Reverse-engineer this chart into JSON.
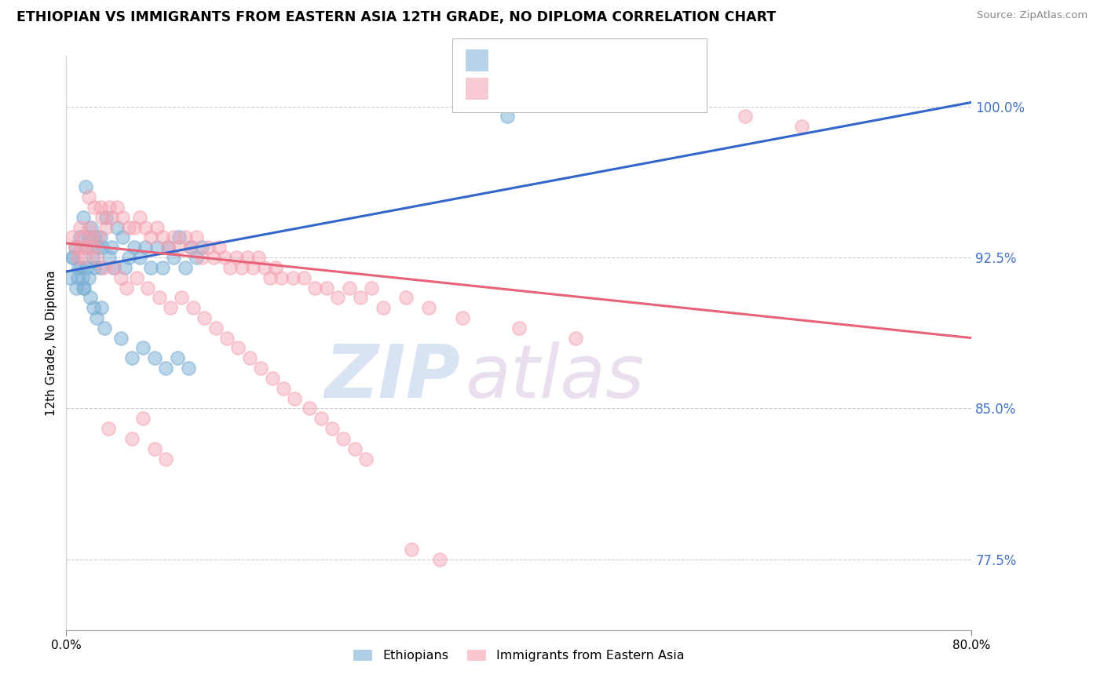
{
  "title": "ETHIOPIAN VS IMMIGRANTS FROM EASTERN ASIA 12TH GRADE, NO DIPLOMA CORRELATION CHART",
  "source": "Source: ZipAtlas.com",
  "ylabel": "12th Grade, No Diploma",
  "y_ticks": [
    77.5,
    85.0,
    92.5,
    100.0
  ],
  "y_tick_labels": [
    "77.5%",
    "85.0%",
    "92.5%",
    "100.0%"
  ],
  "xlim": [
    0.0,
    80.0
  ],
  "ylim": [
    74.0,
    102.5
  ],
  "legend_label_blue": "Ethiopians",
  "legend_label_pink": "Immigrants from Eastern Asia",
  "blue_color": "#7BAFD4",
  "pink_color": "#F4A0B0",
  "blue_line_color": "#3366CC",
  "pink_line_color": "#E8637A",
  "tick_color": "#4472C4",
  "watermark_zip": "ZIP",
  "watermark_atlas": "atlas",
  "blue_line_x0": 0.0,
  "blue_line_y0": 91.8,
  "blue_line_x1": 80.0,
  "blue_line_y1": 100.2,
  "pink_line_x0": 0.0,
  "pink_line_y0": 93.2,
  "pink_line_x1": 80.0,
  "pink_line_y1": 88.5,
  "blue_scatter_x": [
    0.5,
    0.8,
    1.0,
    1.2,
    1.3,
    1.5,
    1.5,
    1.8,
    1.8,
    2.0,
    2.0,
    2.2,
    2.3,
    2.5,
    2.5,
    2.8,
    3.0,
    3.0,
    3.2,
    3.5,
    3.8,
    4.0,
    4.2,
    4.5,
    5.0,
    5.2,
    5.5,
    6.0,
    6.5,
    7.0,
    7.5,
    8.0,
    8.5,
    9.0,
    9.5,
    10.0,
    10.5,
    11.0,
    11.5,
    12.0,
    0.3,
    0.6,
    0.9,
    1.1,
    1.4,
    1.6,
    2.1,
    2.4,
    2.7,
    3.1,
    3.4,
    4.8,
    5.8,
    6.8,
    7.8,
    8.8,
    9.8,
    10.8,
    39.0,
    1.7
  ],
  "blue_scatter_y": [
    92.5,
    93.0,
    91.5,
    93.5,
    92.0,
    94.5,
    91.0,
    93.0,
    92.0,
    93.5,
    91.5,
    94.0,
    92.5,
    93.5,
    92.0,
    93.0,
    93.5,
    92.0,
    93.0,
    94.5,
    92.5,
    93.0,
    92.0,
    94.0,
    93.5,
    92.0,
    92.5,
    93.0,
    92.5,
    93.0,
    92.0,
    93.0,
    92.0,
    93.0,
    92.5,
    93.5,
    92.0,
    93.0,
    92.5,
    93.0,
    91.5,
    92.5,
    91.0,
    92.0,
    91.5,
    91.0,
    90.5,
    90.0,
    89.5,
    90.0,
    89.0,
    88.5,
    87.5,
    88.0,
    87.5,
    87.0,
    87.5,
    87.0,
    99.5,
    96.0
  ],
  "pink_scatter_x": [
    0.5,
    0.8,
    1.0,
    1.2,
    1.5,
    1.8,
    2.0,
    2.0,
    2.2,
    2.5,
    2.8,
    3.0,
    3.2,
    3.5,
    3.8,
    4.0,
    4.5,
    5.0,
    5.5,
    6.0,
    6.5,
    7.0,
    7.5,
    8.0,
    8.5,
    9.0,
    9.5,
    10.0,
    10.5,
    11.0,
    11.5,
    12.0,
    12.5,
    13.0,
    13.5,
    14.0,
    14.5,
    15.0,
    15.5,
    16.0,
    16.5,
    17.0,
    17.5,
    18.0,
    18.5,
    19.0,
    20.0,
    21.0,
    22.0,
    23.0,
    24.0,
    25.0,
    26.0,
    27.0,
    28.0,
    30.0,
    32.0,
    35.0,
    40.0,
    45.0,
    1.3,
    1.6,
    2.3,
    2.7,
    3.3,
    4.2,
    4.8,
    5.3,
    6.2,
    7.2,
    8.2,
    9.2,
    10.2,
    11.2,
    12.2,
    13.2,
    14.2,
    15.2,
    16.2,
    17.2,
    18.2,
    19.2,
    20.2,
    21.5,
    22.5,
    23.5,
    24.5,
    25.5,
    26.5,
    3.7,
    5.8,
    6.8,
    7.8,
    8.8,
    30.5,
    33.0,
    60.0,
    65.0
  ],
  "pink_scatter_y": [
    93.5,
    93.0,
    92.5,
    94.0,
    93.5,
    93.0,
    95.5,
    94.0,
    93.5,
    95.0,
    93.5,
    95.0,
    94.5,
    94.0,
    95.0,
    94.5,
    95.0,
    94.5,
    94.0,
    94.0,
    94.5,
    94.0,
    93.5,
    94.0,
    93.5,
    93.0,
    93.5,
    93.0,
    93.5,
    93.0,
    93.5,
    92.5,
    93.0,
    92.5,
    93.0,
    92.5,
    92.0,
    92.5,
    92.0,
    92.5,
    92.0,
    92.5,
    92.0,
    91.5,
    92.0,
    91.5,
    91.5,
    91.5,
    91.0,
    91.0,
    90.5,
    91.0,
    90.5,
    91.0,
    90.0,
    90.5,
    90.0,
    89.5,
    89.0,
    88.5,
    93.0,
    92.5,
    93.0,
    92.5,
    92.0,
    92.0,
    91.5,
    91.0,
    91.5,
    91.0,
    90.5,
    90.0,
    90.5,
    90.0,
    89.5,
    89.0,
    88.5,
    88.0,
    87.5,
    87.0,
    86.5,
    86.0,
    85.5,
    85.0,
    84.5,
    84.0,
    83.5,
    83.0,
    82.5,
    84.0,
    83.5,
    84.5,
    83.0,
    82.5,
    78.0,
    77.5,
    99.5,
    99.0
  ]
}
